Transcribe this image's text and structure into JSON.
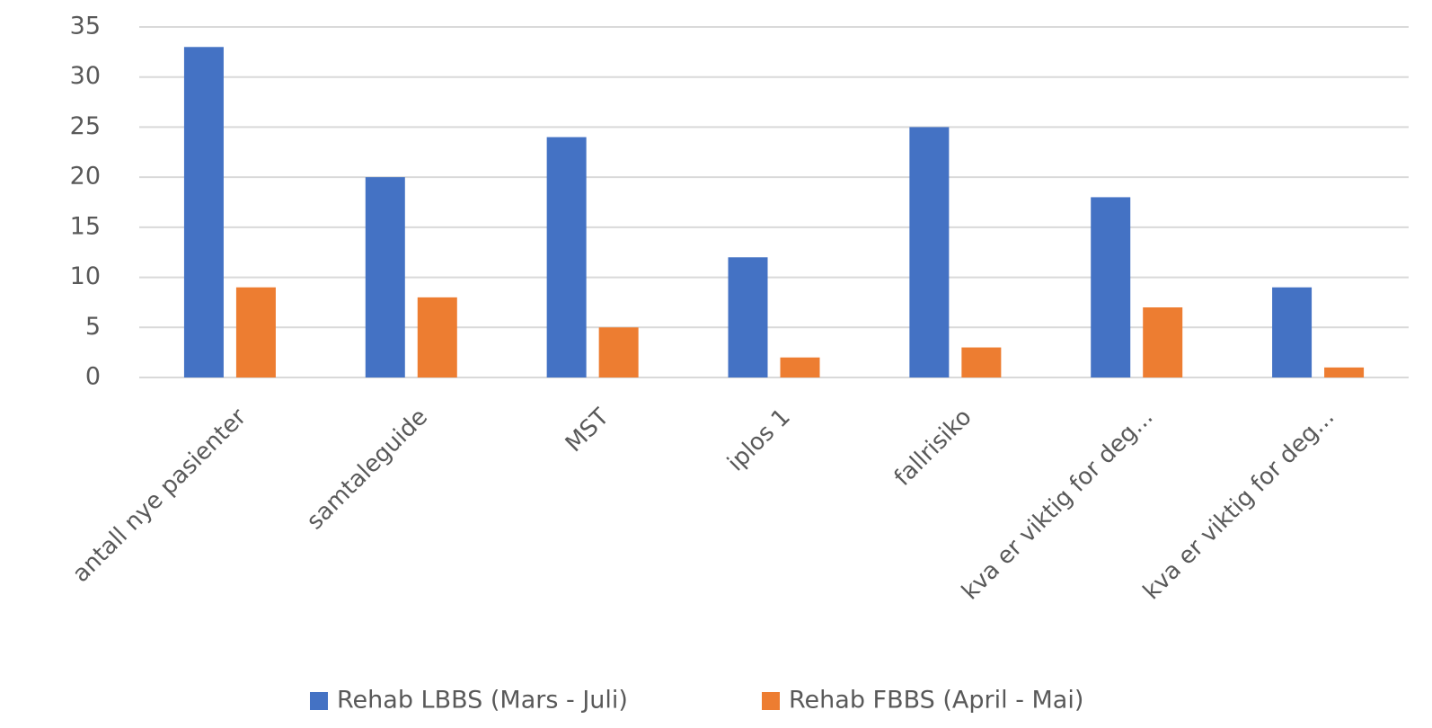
{
  "chart_data": {
    "type": "bar",
    "categories": [
      "antall nye pasienter",
      "samtaleguide",
      "MST",
      "iplos 1",
      "fallrisiko",
      "kva er viktig for deg...",
      "kva er viktig for deg..."
    ],
    "series": [
      {
        "name": "Rehab LBBS (Mars - Juli)",
        "color": "#4472c4",
        "values": [
          33,
          20,
          24,
          12,
          25,
          18,
          9
        ]
      },
      {
        "name": "Rehab FBBS (April - Mai)",
        "color": "#ed7d31",
        "values": [
          9,
          8,
          5,
          2,
          3,
          7,
          1
        ]
      }
    ],
    "ylim": [
      0,
      35
    ],
    "yticks": [
      0,
      5,
      10,
      15,
      20,
      25,
      30,
      35
    ],
    "grid": true,
    "legend": "bottom"
  }
}
